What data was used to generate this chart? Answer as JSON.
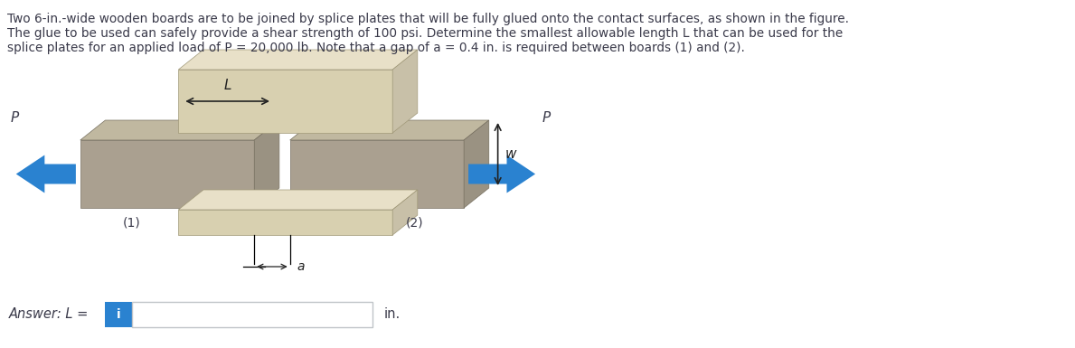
{
  "title_line1": "Two 6-in.-wide wooden boards are to be joined by splice plates that will be fully glued onto the contact surfaces, as shown in the figure.",
  "title_line2": "The glue to be used can safely provide a shear strength of 100 psi. Determine the smallest allowable length L that can be used for the",
  "title_line3": "splice plates for an applied load of P = 20,000 lb. Note that a gap of a = 0.4 in. is required between boards (1) and (2).",
  "answer_text": "Answer: L = ",
  "in_text": "in.",
  "label_1": "(1)",
  "label_2": "(2)",
  "label_L": "L",
  "label_w": "w",
  "label_a": "a",
  "label_P": "P",
  "bg_color": "#ffffff",
  "wood_front": "#aaa090",
  "wood_top": "#c0b8a0",
  "wood_side": "#9a9282",
  "wood_top2": "#b8b0a0",
  "splice_front": "#d8d0b0",
  "splice_top": "#e8e0c8",
  "splice_side": "#c8c0a8",
  "text_color": "#3a3a4a",
  "arrow_color": "#2a82d0",
  "dim_color": "#222222",
  "answer_box_color": "#2a82d0",
  "inp_border_color": "#c0c4c8"
}
